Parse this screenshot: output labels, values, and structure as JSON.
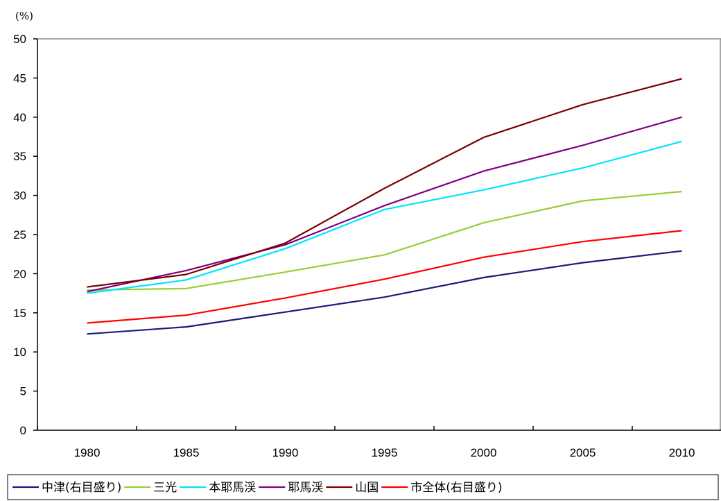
{
  "chart_data": {
    "type": "line",
    "unit_label": "(%)",
    "ylim": [
      0,
      50
    ],
    "yticks": [
      "0",
      "5",
      "10",
      "15",
      "20",
      "25",
      "30",
      "35",
      "40",
      "45",
      "50"
    ],
    "categories": [
      "1980",
      "1985",
      "1990",
      "1995",
      "2000",
      "2005",
      "2010"
    ],
    "grid": false,
    "legend_position": "bottom",
    "series": [
      {
        "name": "中津(右目盛り)",
        "color": "#1a1a7a",
        "values": [
          12.3,
          13.2,
          15.1,
          17.0,
          19.5,
          21.4,
          22.9
        ]
      },
      {
        "name": "三光",
        "color": "#9acd32",
        "values": [
          17.9,
          18.1,
          20.2,
          22.4,
          26.5,
          29.3,
          30.5
        ]
      },
      {
        "name": "本耶馬渓",
        "color": "#00e5ff",
        "values": [
          17.5,
          19.2,
          23.2,
          28.2,
          30.7,
          33.5,
          36.9
        ]
      },
      {
        "name": "耶馬渓",
        "color": "#800080",
        "values": [
          17.7,
          20.4,
          23.7,
          28.7,
          33.1,
          36.4,
          40.0
        ]
      },
      {
        "name": "山国",
        "color": "#7a0000",
        "values": [
          18.3,
          19.9,
          23.9,
          30.9,
          37.4,
          41.6,
          44.9
        ]
      },
      {
        "name": "市全体(右目盛り)",
        "color": "#ff0000",
        "values": [
          13.7,
          14.7,
          16.9,
          19.3,
          22.1,
          24.1,
          25.5
        ]
      }
    ]
  }
}
